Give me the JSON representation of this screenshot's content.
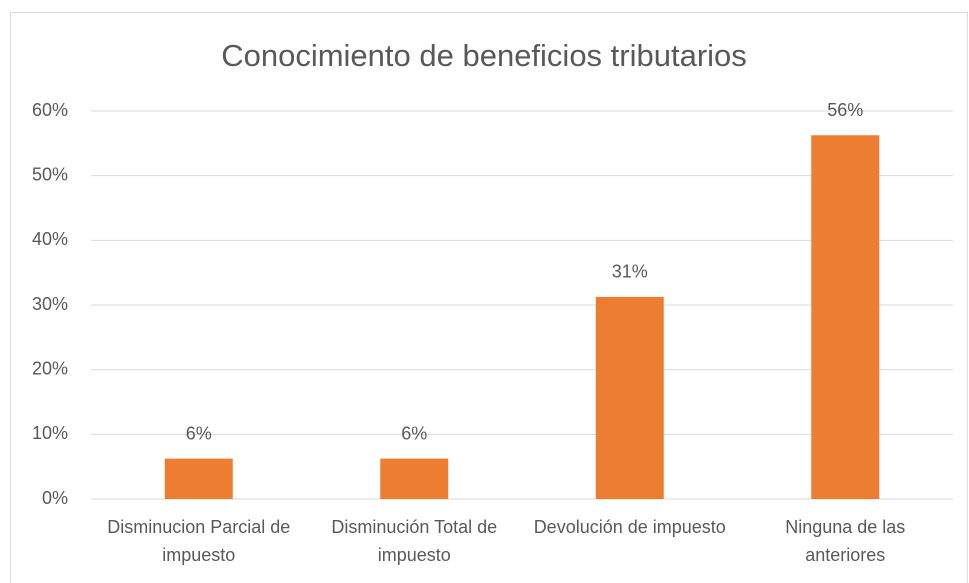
{
  "chart_data": {
    "type": "bar",
    "title": "Conocimiento de beneficios tributarios",
    "categories": [
      "Disminucion Parcial de impuesto",
      "Disminución Total de impuesto",
      "Devolución de impuesto",
      "Ninguna de las anteriores"
    ],
    "values": [
      6.25,
      6.25,
      31.25,
      56.25
    ],
    "value_labels": [
      "6%",
      "6%",
      "31%",
      "56%"
    ],
    "color": "#ed7d31",
    "ylim": [
      0,
      60
    ],
    "yticks": [
      {
        "value": 0,
        "label": "0%"
      },
      {
        "value": 10,
        "label": "10%"
      },
      {
        "value": 20,
        "label": "20%"
      },
      {
        "value": 30,
        "label": "30%"
      },
      {
        "value": 40,
        "label": "40%"
      },
      {
        "value": 50,
        "label": "50%"
      },
      {
        "value": 60,
        "label": "60%"
      }
    ],
    "grid": true
  }
}
